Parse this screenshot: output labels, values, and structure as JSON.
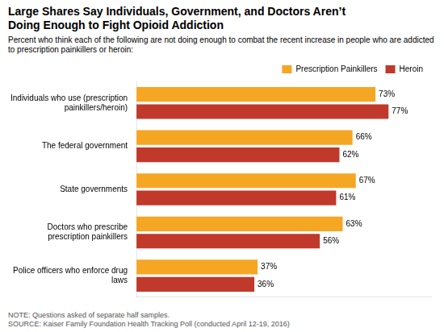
{
  "chart_data": {
    "type": "bar",
    "orientation": "horizontal",
    "title": "Large Shares Say Individuals, Government, and Doctors Aren’t\nDoing Enough to Fight Opioid Addiction",
    "subtitle": "Percent who think each of the following are not doing enough to combat the recent increase in people who are addicted\nto prescription painkillers or heroin:",
    "note": "NOTE: Questions asked of separate half samples.\nSOURCE: Kaiser Family Foundation Health Tracking Poll (conducted April 12-19, 2016)",
    "categories": [
      "Individuals who use (prescription\npainkillers/heroin)",
      "The federal government",
      "State governments",
      "Doctors who prescribe\nprescription painkillers",
      "Police officers who enforce drug\nlaws"
    ],
    "series": [
      {
        "name": "Prescription Painkillers",
        "color": "#F5A623",
        "values": [
          73,
          66,
          67,
          63,
          37
        ],
        "value_labels": [
          "73%",
          "66%",
          "67%",
          "63%",
          "37%"
        ]
      },
      {
        "name": "Heroin",
        "color": "#C0392B",
        "values": [
          77,
          62,
          61,
          56,
          36
        ],
        "value_labels": [
          "77%",
          "62%",
          "61%",
          "56%",
          "36%"
        ]
      }
    ],
    "xlim": [
      0,
      90
    ],
    "tick_labels": "y",
    "grid": false,
    "legend": "upper right",
    "data_labels": true
  }
}
